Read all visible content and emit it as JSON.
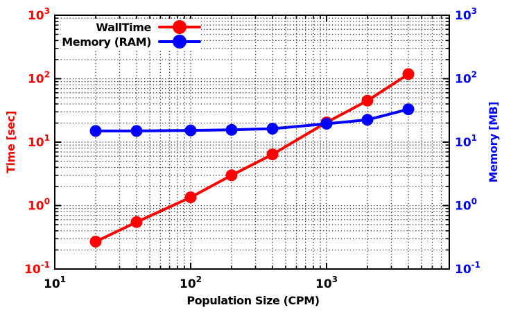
{
  "chart_data": {
    "type": "line",
    "title": "",
    "x_axis": {
      "label": "Population Size (CPM)",
      "scale": "log",
      "range": [
        10,
        8000
      ],
      "tick_exponents": [
        1,
        2,
        3
      ],
      "tick_labels": [
        "10^1",
        "10^2",
        "10^3"
      ],
      "color": "#000000"
    },
    "y_axis_left": {
      "label": "Time [sec]",
      "scale": "log",
      "range": [
        0.1,
        1000
      ],
      "tick_exponents": [
        -1,
        0,
        1,
        2,
        3
      ],
      "tick_labels": [
        "10^-1",
        "10^0",
        "10^1",
        "10^2",
        "10^3"
      ],
      "color": "#ff0000"
    },
    "y_axis_right": {
      "label": "Memory [MB]",
      "scale": "log",
      "range": [
        0.1,
        1000
      ],
      "tick_exponents": [
        -1,
        0,
        1,
        2,
        3
      ],
      "tick_labels": [
        "10^-1",
        "10^0",
        "10^1",
        "10^2",
        "10^3"
      ],
      "color": "#0000ff"
    },
    "x": [
      20,
      40,
      100,
      200,
      400,
      1000,
      2000,
      4000
    ],
    "series": [
      {
        "name": "WallTime",
        "color": "#ff0000",
        "axis": "left",
        "marker": "filled-circle",
        "values": [
          0.27,
          0.55,
          1.35,
          3.0,
          6.4,
          20.5,
          45,
          118
        ]
      },
      {
        "name": "Memory (RAM)",
        "color": "#0000ff",
        "axis": "right",
        "marker": "filled-circle",
        "values": [
          15,
          15,
          15.3,
          15.6,
          16.3,
          19.5,
          22.5,
          33
        ]
      }
    ],
    "legend": {
      "position": "top-left",
      "entries": [
        "WallTime",
        "Memory (RAM)"
      ]
    },
    "grid": {
      "shown": true,
      "style": "dotted",
      "color": "#000000",
      "minor_lines": true
    },
    "plot_bg": "#ffffff",
    "border_color": "#000000"
  }
}
